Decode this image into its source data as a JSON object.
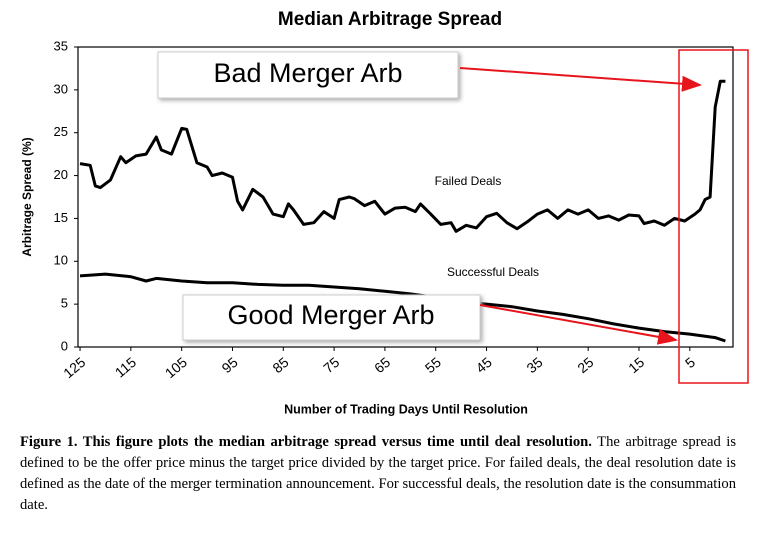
{
  "chart_data": {
    "type": "line",
    "title": "Median Arbitrage Spread",
    "xlabel": "Number of Trading Days Until Resolution",
    "ylabel": "Arbitrage Spread (%)",
    "xlim": [
      125.4,
      -3.5
    ],
    "ylim": [
      0,
      35
    ],
    "xticks": [
      125,
      115,
      105,
      95,
      85,
      75,
      65,
      55,
      45,
      35,
      25,
      15,
      5
    ],
    "yticks": [
      0,
      5,
      10,
      15,
      20,
      25,
      30,
      35
    ],
    "series": [
      {
        "name": "Failed Deals",
        "color": "#000000",
        "x": [
          125,
          123,
          122,
          121,
          119,
          117,
          116,
          114,
          112,
          110,
          109,
          107,
          105,
          104,
          102,
          100,
          99,
          97,
          95,
          94,
          93,
          91,
          89,
          87,
          85,
          84,
          83,
          81,
          79,
          77,
          75,
          74,
          72,
          71,
          69,
          67,
          65,
          63,
          61,
          59,
          58,
          56,
          54,
          52,
          51,
          49,
          47,
          45,
          43,
          41,
          39,
          37,
          35,
          33,
          31,
          29,
          27,
          25,
          23,
          21,
          19,
          17,
          15,
          14,
          12,
          10,
          8,
          6,
          4,
          3,
          2,
          1,
          0,
          -1,
          -2
        ],
        "values": [
          21.4,
          21.2,
          18.8,
          18.6,
          19.5,
          22.2,
          21.5,
          22.3,
          22.5,
          24.5,
          23,
          22.5,
          25.5,
          25.4,
          21.5,
          21,
          20,
          20.3,
          19.8,
          17,
          16,
          18.4,
          17.5,
          15.5,
          15.2,
          16.7,
          16,
          14.3,
          14.5,
          15.8,
          15,
          17.2,
          17.5,
          17.3,
          16.5,
          17,
          15.5,
          16.2,
          16.3,
          15.8,
          16.7,
          15.5,
          14.3,
          14.5,
          13.5,
          14.2,
          13.9,
          15.2,
          15.6,
          14.5,
          13.8,
          14.6,
          15.5,
          16,
          15,
          16,
          15.5,
          16,
          15,
          15.3,
          14.8,
          15.4,
          15.3,
          14.4,
          14.7,
          14.2,
          15,
          14.7,
          15.5,
          16,
          17.2,
          17.5,
          28,
          31,
          31
        ]
      },
      {
        "name": "Successful Deals",
        "color": "#000000",
        "x": [
          125,
          120,
          115,
          112,
          110,
          105,
          100,
          95,
          90,
          85,
          80,
          75,
          70,
          65,
          60,
          55,
          50,
          45,
          40,
          35,
          30,
          25,
          20,
          15,
          10,
          5,
          0,
          -2
        ],
        "values": [
          8.3,
          8.5,
          8.2,
          7.7,
          8,
          7.7,
          7.5,
          7.5,
          7.3,
          7.2,
          7.2,
          7,
          6.8,
          6.5,
          6.2,
          5.8,
          5.3,
          5,
          4.7,
          4.2,
          3.8,
          3.3,
          2.7,
          2.2,
          1.8,
          1.5,
          1.1,
          0.7
        ]
      }
    ],
    "annotations": [
      {
        "text": "Bad Merger Arb"
      },
      {
        "text": "Good Merger Arb"
      }
    ]
  },
  "caption": {
    "bold": "Figure 1. This figure plots the median arbitrage spread versus time until deal resolution.",
    "text": "The arbitrage spread is defined to be the offer price minus the target price divided by the target price. For failed deals, the deal resolution date is defined as the date of the merger termination announcement. For successful deals, the resolution date is the consummation date."
  }
}
